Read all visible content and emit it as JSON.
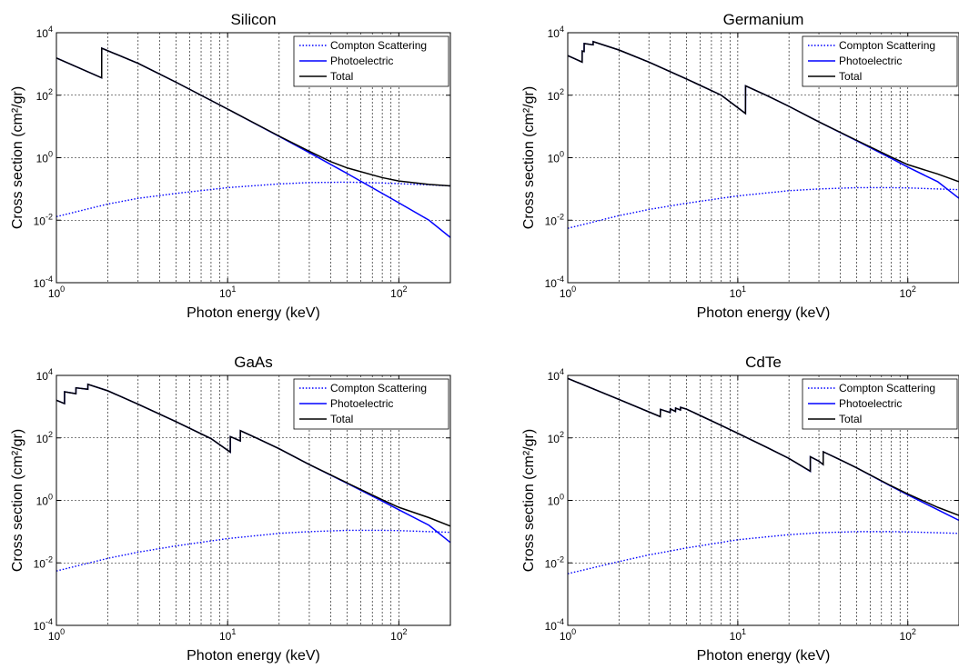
{
  "chart_data": [
    {
      "type": "line",
      "title": "Silicon",
      "xlabel": "Photon energy (keV)",
      "ylabel": "Cross section (cm²/gr)",
      "xscale": "log",
      "yscale": "log",
      "xlim": [
        1,
        200
      ],
      "ylim": [
        0.0001,
        10000
      ],
      "x_tick_labels": [
        "10^0",
        "10^1",
        "10^2"
      ],
      "y_tick_labels": [
        "10^-4",
        "10^-2",
        "10^0",
        "10^2",
        "10^4"
      ],
      "grid": true,
      "legend_position": "top-right",
      "series": [
        {
          "name": "Compton Scattering",
          "style": "dotted",
          "color": "#0000ff",
          "x": [
            1,
            2,
            3,
            5,
            10,
            20,
            30,
            50,
            80,
            100,
            150,
            200
          ],
          "y": [
            0.013,
            0.033,
            0.05,
            0.072,
            0.11,
            0.145,
            0.16,
            0.165,
            0.155,
            0.148,
            0.135,
            0.125
          ]
        },
        {
          "name": "Photoelectric",
          "style": "solid",
          "color": "#0000ff",
          "x": [
            1,
            1.838,
            1.839,
            3,
            5,
            10,
            20,
            30,
            50,
            80,
            100,
            150,
            200
          ],
          "y": [
            1550,
            360,
            3200,
            1050,
            260,
            36,
            4.8,
            1.45,
            0.31,
            0.072,
            0.036,
            0.01,
            0.0028
          ]
        },
        {
          "name": "Total",
          "style": "solid",
          "color": "#000000",
          "x": [
            1,
            1.838,
            1.839,
            3,
            5,
            10,
            20,
            30,
            40,
            50,
            80,
            100,
            150,
            200
          ],
          "y": [
            1550,
            360,
            3200,
            1050,
            260,
            36,
            4.9,
            1.6,
            0.75,
            0.47,
            0.23,
            0.18,
            0.14,
            0.125
          ]
        }
      ]
    },
    {
      "type": "line",
      "title": "Germanium",
      "xlabel": "Photon energy (keV)",
      "ylabel": "Cross section (cm²/gr)",
      "xscale": "log",
      "yscale": "log",
      "xlim": [
        1,
        200
      ],
      "ylim": [
        0.0001,
        10000
      ],
      "x_tick_labels": [
        "10^0",
        "10^1",
        "10^2"
      ],
      "y_tick_labels": [
        "10^-4",
        "10^-2",
        "10^0",
        "10^2",
        "10^4"
      ],
      "grid": true,
      "legend_position": "top-right",
      "series": [
        {
          "name": "Compton Scattering",
          "style": "dotted",
          "color": "#0000ff",
          "x": [
            1,
            2,
            3,
            5,
            10,
            20,
            30,
            50,
            80,
            100,
            150,
            200
          ],
          "y": [
            0.0055,
            0.014,
            0.022,
            0.035,
            0.06,
            0.088,
            0.1,
            0.11,
            0.11,
            0.108,
            0.1,
            0.095
          ]
        },
        {
          "name": "Photoelectric",
          "style": "solid",
          "color": "#0000ff",
          "x": [
            1,
            1.215,
            1.216,
            1.248,
            1.249,
            1.41,
            1.411,
            2,
            3,
            5,
            8,
            11.1,
            11.11,
            15,
            20,
            30,
            50,
            80,
            100,
            150,
            200
          ],
          "y": [
            1850,
            1150,
            2600,
            2500,
            4500,
            4100,
            5200,
            2800,
            1150,
            330,
            100,
            26,
            200,
            95,
            44,
            14,
            3.5,
            0.95,
            0.5,
            0.17,
            0.05
          ]
        },
        {
          "name": "Total",
          "style": "solid",
          "color": "#000000",
          "x": [
            1,
            1.215,
            1.216,
            1.248,
            1.249,
            1.41,
            1.411,
            2,
            3,
            5,
            8,
            11.1,
            11.11,
            15,
            20,
            30,
            50,
            80,
            100,
            150,
            200
          ],
          "y": [
            1850,
            1150,
            2600,
            2500,
            4500,
            4100,
            5200,
            2800,
            1150,
            330,
            100,
            26,
            200,
            95,
            44,
            14,
            3.6,
            1.05,
            0.6,
            0.3,
            0.17
          ]
        }
      ]
    },
    {
      "type": "line",
      "title": "GaAs",
      "xlabel": "Photon energy (keV)",
      "ylabel": "Cross section (cm²/gr)",
      "xscale": "log",
      "yscale": "log",
      "xlim": [
        1,
        200
      ],
      "ylim": [
        0.0001,
        10000
      ],
      "x_tick_labels": [
        "10^0",
        "10^1",
        "10^2"
      ],
      "y_tick_labels": [
        "10^-4",
        "10^-2",
        "10^0",
        "10^2",
        "10^4"
      ],
      "grid": true,
      "legend_position": "top-right",
      "series": [
        {
          "name": "Compton Scattering",
          "style": "dotted",
          "color": "#0000ff",
          "x": [
            1,
            2,
            3,
            5,
            10,
            20,
            30,
            50,
            80,
            100,
            150,
            200
          ],
          "y": [
            0.0055,
            0.014,
            0.022,
            0.035,
            0.06,
            0.088,
            0.1,
            0.11,
            0.11,
            0.108,
            0.1,
            0.095
          ]
        },
        {
          "name": "Photoelectric",
          "style": "solid",
          "color": "#0000ff",
          "x": [
            1,
            1.115,
            1.116,
            1.3,
            1.301,
            1.526,
            1.527,
            2,
            3,
            5,
            8,
            10.36,
            10.37,
            11.86,
            11.87,
            15,
            20,
            30,
            50,
            80,
            100,
            150,
            200
          ],
          "y": [
            1600,
            1250,
            3000,
            2600,
            4000,
            3600,
            5200,
            3200,
            1200,
            330,
            95,
            35,
            110,
            80,
            170,
            95,
            45,
            14,
            3.5,
            0.95,
            0.5,
            0.16,
            0.045
          ]
        },
        {
          "name": "Total",
          "style": "solid",
          "color": "#000000",
          "x": [
            1,
            1.115,
            1.116,
            1.3,
            1.301,
            1.526,
            1.527,
            2,
            3,
            5,
            8,
            10.36,
            10.37,
            11.86,
            11.87,
            15,
            20,
            30,
            50,
            80,
            100,
            150,
            200
          ],
          "y": [
            1600,
            1250,
            3000,
            2600,
            4000,
            3600,
            5200,
            3200,
            1200,
            330,
            95,
            35,
            110,
            80,
            170,
            95,
            45,
            14,
            3.6,
            1.05,
            0.6,
            0.28,
            0.15
          ]
        }
      ]
    },
    {
      "type": "line",
      "title": "CdTe",
      "xlabel": "Photon energy (keV)",
      "ylabel": "Cross section (cm²/gr)",
      "xscale": "log",
      "yscale": "log",
      "xlim": [
        1,
        200
      ],
      "ylim": [
        0.0001,
        10000
      ],
      "x_tick_labels": [
        "10^0",
        "10^1",
        "10^2"
      ],
      "y_tick_labels": [
        "10^-4",
        "10^-2",
        "10^0",
        "10^2",
        "10^4"
      ],
      "grid": true,
      "legend_position": "top-right",
      "series": [
        {
          "name": "Compton Scattering",
          "style": "dotted",
          "color": "#0000ff",
          "x": [
            1,
            2,
            3,
            5,
            10,
            20,
            30,
            50,
            80,
            100,
            150,
            200
          ],
          "y": [
            0.0045,
            0.011,
            0.018,
            0.03,
            0.055,
            0.08,
            0.092,
            0.1,
            0.1,
            0.098,
            0.092,
            0.088
          ]
        },
        {
          "name": "Photoelectric",
          "style": "solid",
          "color": "#0000ff",
          "x": [
            1,
            2,
            3.5,
            3.51,
            4.0,
            4.01,
            4.3,
            4.31,
            4.6,
            4.61,
            5,
            8,
            10,
            15,
            20,
            26.7,
            26.71,
            30,
            31.8,
            31.81,
            40,
            50,
            80,
            100,
            150,
            200
          ],
          "y": [
            8000,
            1700,
            480,
            820,
            650,
            850,
            700,
            900,
            780,
            950,
            830,
            250,
            140,
            48,
            22,
            8.5,
            25,
            18,
            14,
            36,
            20,
            11,
            2.8,
            1.5,
            0.5,
            0.23
          ]
        },
        {
          "name": "Total",
          "style": "solid",
          "color": "#000000",
          "x": [
            1,
            2,
            3.5,
            3.51,
            4.0,
            4.01,
            4.3,
            4.31,
            4.6,
            4.61,
            5,
            8,
            10,
            15,
            20,
            26.7,
            26.71,
            30,
            31.8,
            31.81,
            40,
            50,
            80,
            100,
            150,
            200
          ],
          "y": [
            8000,
            1700,
            480,
            820,
            650,
            850,
            700,
            900,
            780,
            950,
            830,
            250,
            140,
            48,
            22,
            8.6,
            25,
            18,
            14,
            36,
            20,
            11,
            2.9,
            1.6,
            0.6,
            0.33
          ]
        }
      ]
    }
  ]
}
